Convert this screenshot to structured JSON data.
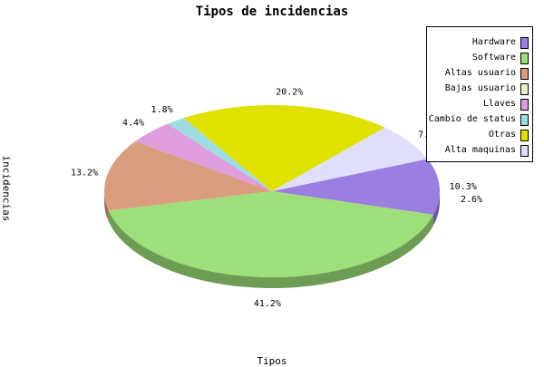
{
  "chart_data": {
    "type": "pie",
    "title": "Tipos de incidencias",
    "ylabel": "incidencias",
    "xlabel": "Tipos",
    "categories": [
      "Hardware",
      "Software",
      "Altas usuario",
      "Bajas usuario",
      "Llaves",
      "Cambio de status",
      "Otras",
      "Alta maquinas"
    ],
    "values": [
      10.3,
      41.2,
      13.2,
      0.0,
      4.4,
      1.8,
      20.2,
      7.0
    ],
    "labels": [
      "10.3%",
      "41.2%",
      "13.2%",
      "",
      "4.4%",
      "1.8%",
      "20.2%",
      "7.0%"
    ],
    "extra_label": "2.6%",
    "colors": [
      "#9b7ee0",
      "#9ddf7a",
      "#da9e7e",
      "#ecedc6",
      "#dd9ddf",
      "#9ddde0",
      "#e1e100",
      "#dfdffc"
    ],
    "legend_position": "top-right"
  }
}
